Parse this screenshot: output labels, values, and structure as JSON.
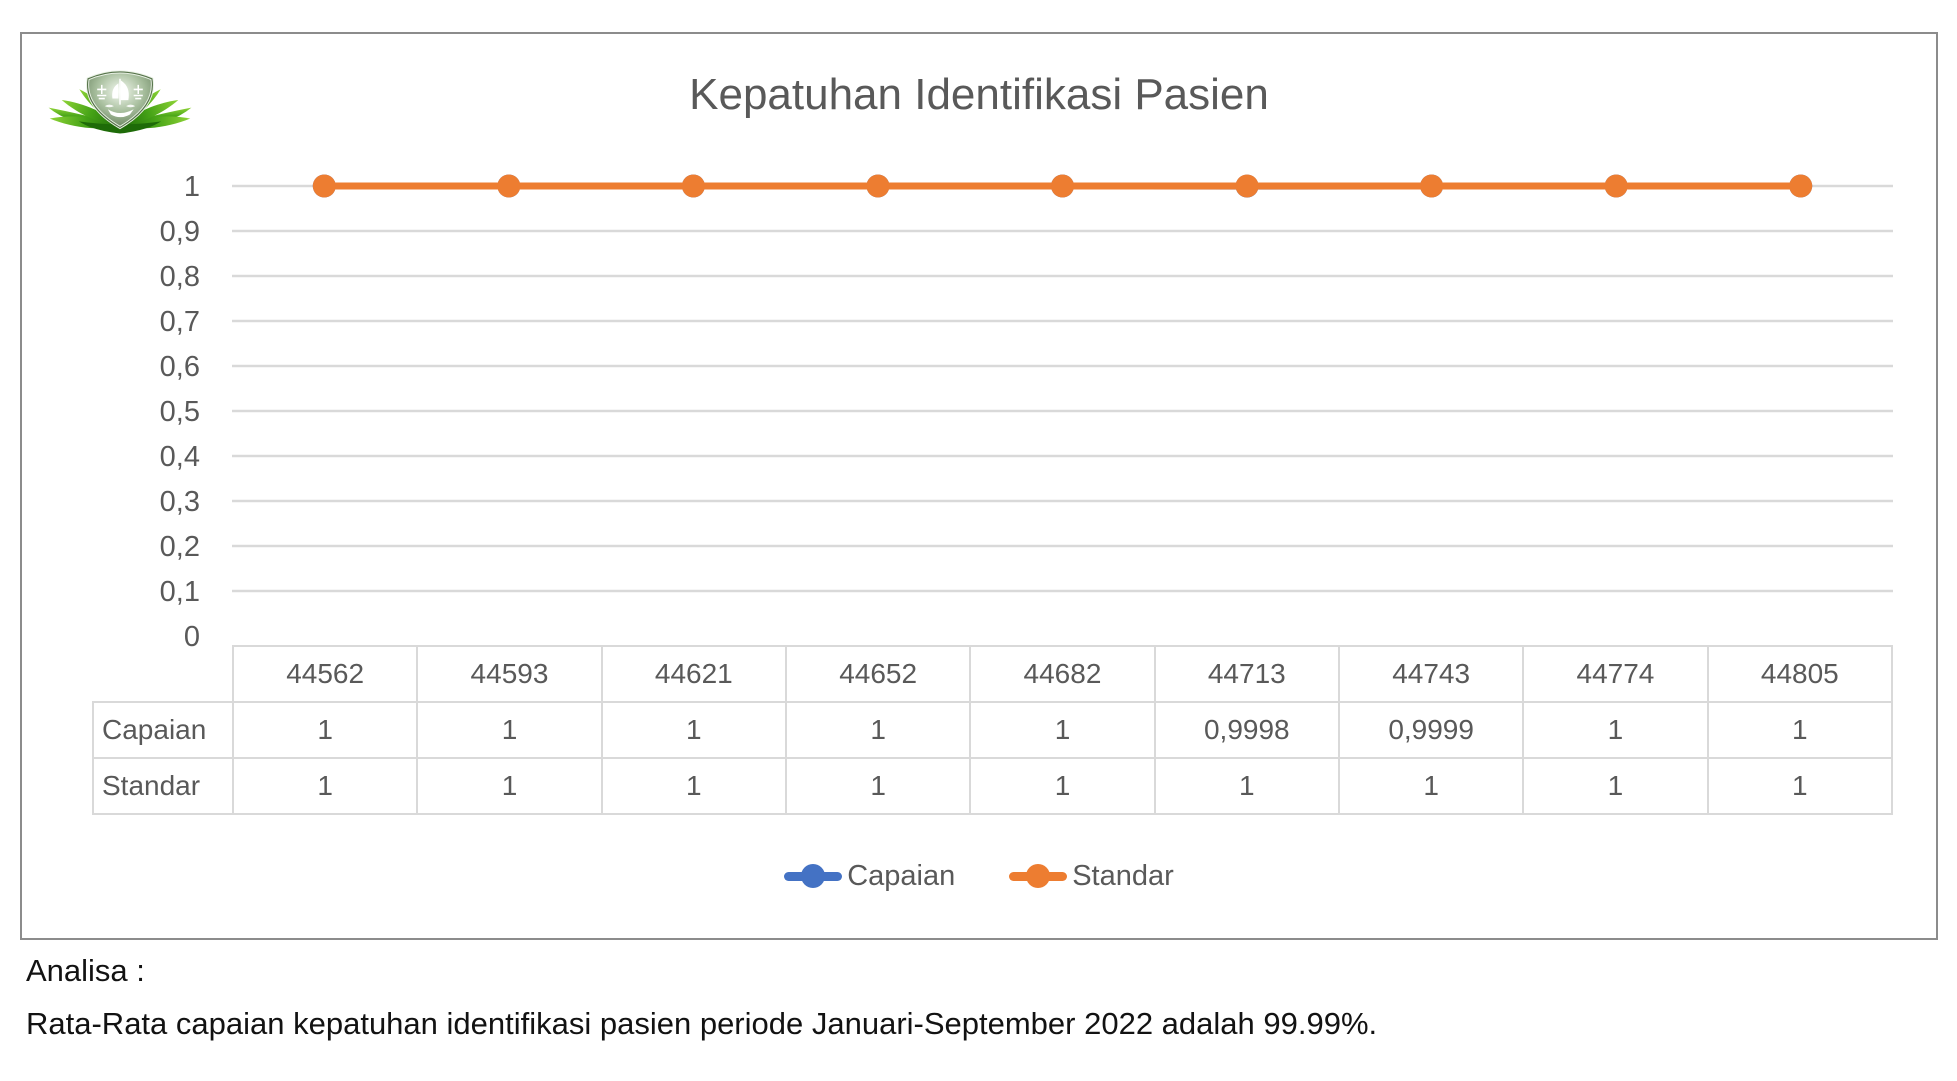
{
  "chart": {
    "title": "Kepatuhan Identifikasi Pasien"
  },
  "chart_data": {
    "type": "line",
    "title": "Kepatuhan Identifikasi Pasien",
    "categories": [
      "44562",
      "44593",
      "44621",
      "44652",
      "44682",
      "44713",
      "44743",
      "44774",
      "44805"
    ],
    "series": [
      {
        "name": "Capaian",
        "color": "#4472C4",
        "values": [
          1,
          1,
          1,
          1,
          1,
          0.9998,
          0.9999,
          1,
          1
        ],
        "display_values": [
          "1",
          "1",
          "1",
          "1",
          "1",
          "0,9998",
          "0,9999",
          "1",
          "1"
        ]
      },
      {
        "name": "Standar",
        "color": "#ED7D31",
        "values": [
          1,
          1,
          1,
          1,
          1,
          1,
          1,
          1,
          1
        ],
        "display_values": [
          "1",
          "1",
          "1",
          "1",
          "1",
          "1",
          "1",
          "1",
          "1"
        ]
      }
    ],
    "ylim": [
      0,
      1
    ],
    "ytick_step": 0.1,
    "ytick_labels": [
      "0",
      "0,1",
      "0,2",
      "0,3",
      "0,4",
      "0,5",
      "0,6",
      "0,7",
      "0,8",
      "0,9",
      "1"
    ],
    "grid": true,
    "legend_position": "bottom",
    "data_table_shown": true
  },
  "analysis": {
    "heading": "Analisa :",
    "body": "Rata-Rata capaian kepatuhan identifikasi pasien periode Januari-September 2022 adalah 99.99%."
  },
  "colors": {
    "accent_blue": "#4472C4",
    "accent_orange": "#ED7D31",
    "grid_gray": "#D9D9D9",
    "text_gray": "#595959",
    "box_border_gray": "#8C8C8C"
  }
}
